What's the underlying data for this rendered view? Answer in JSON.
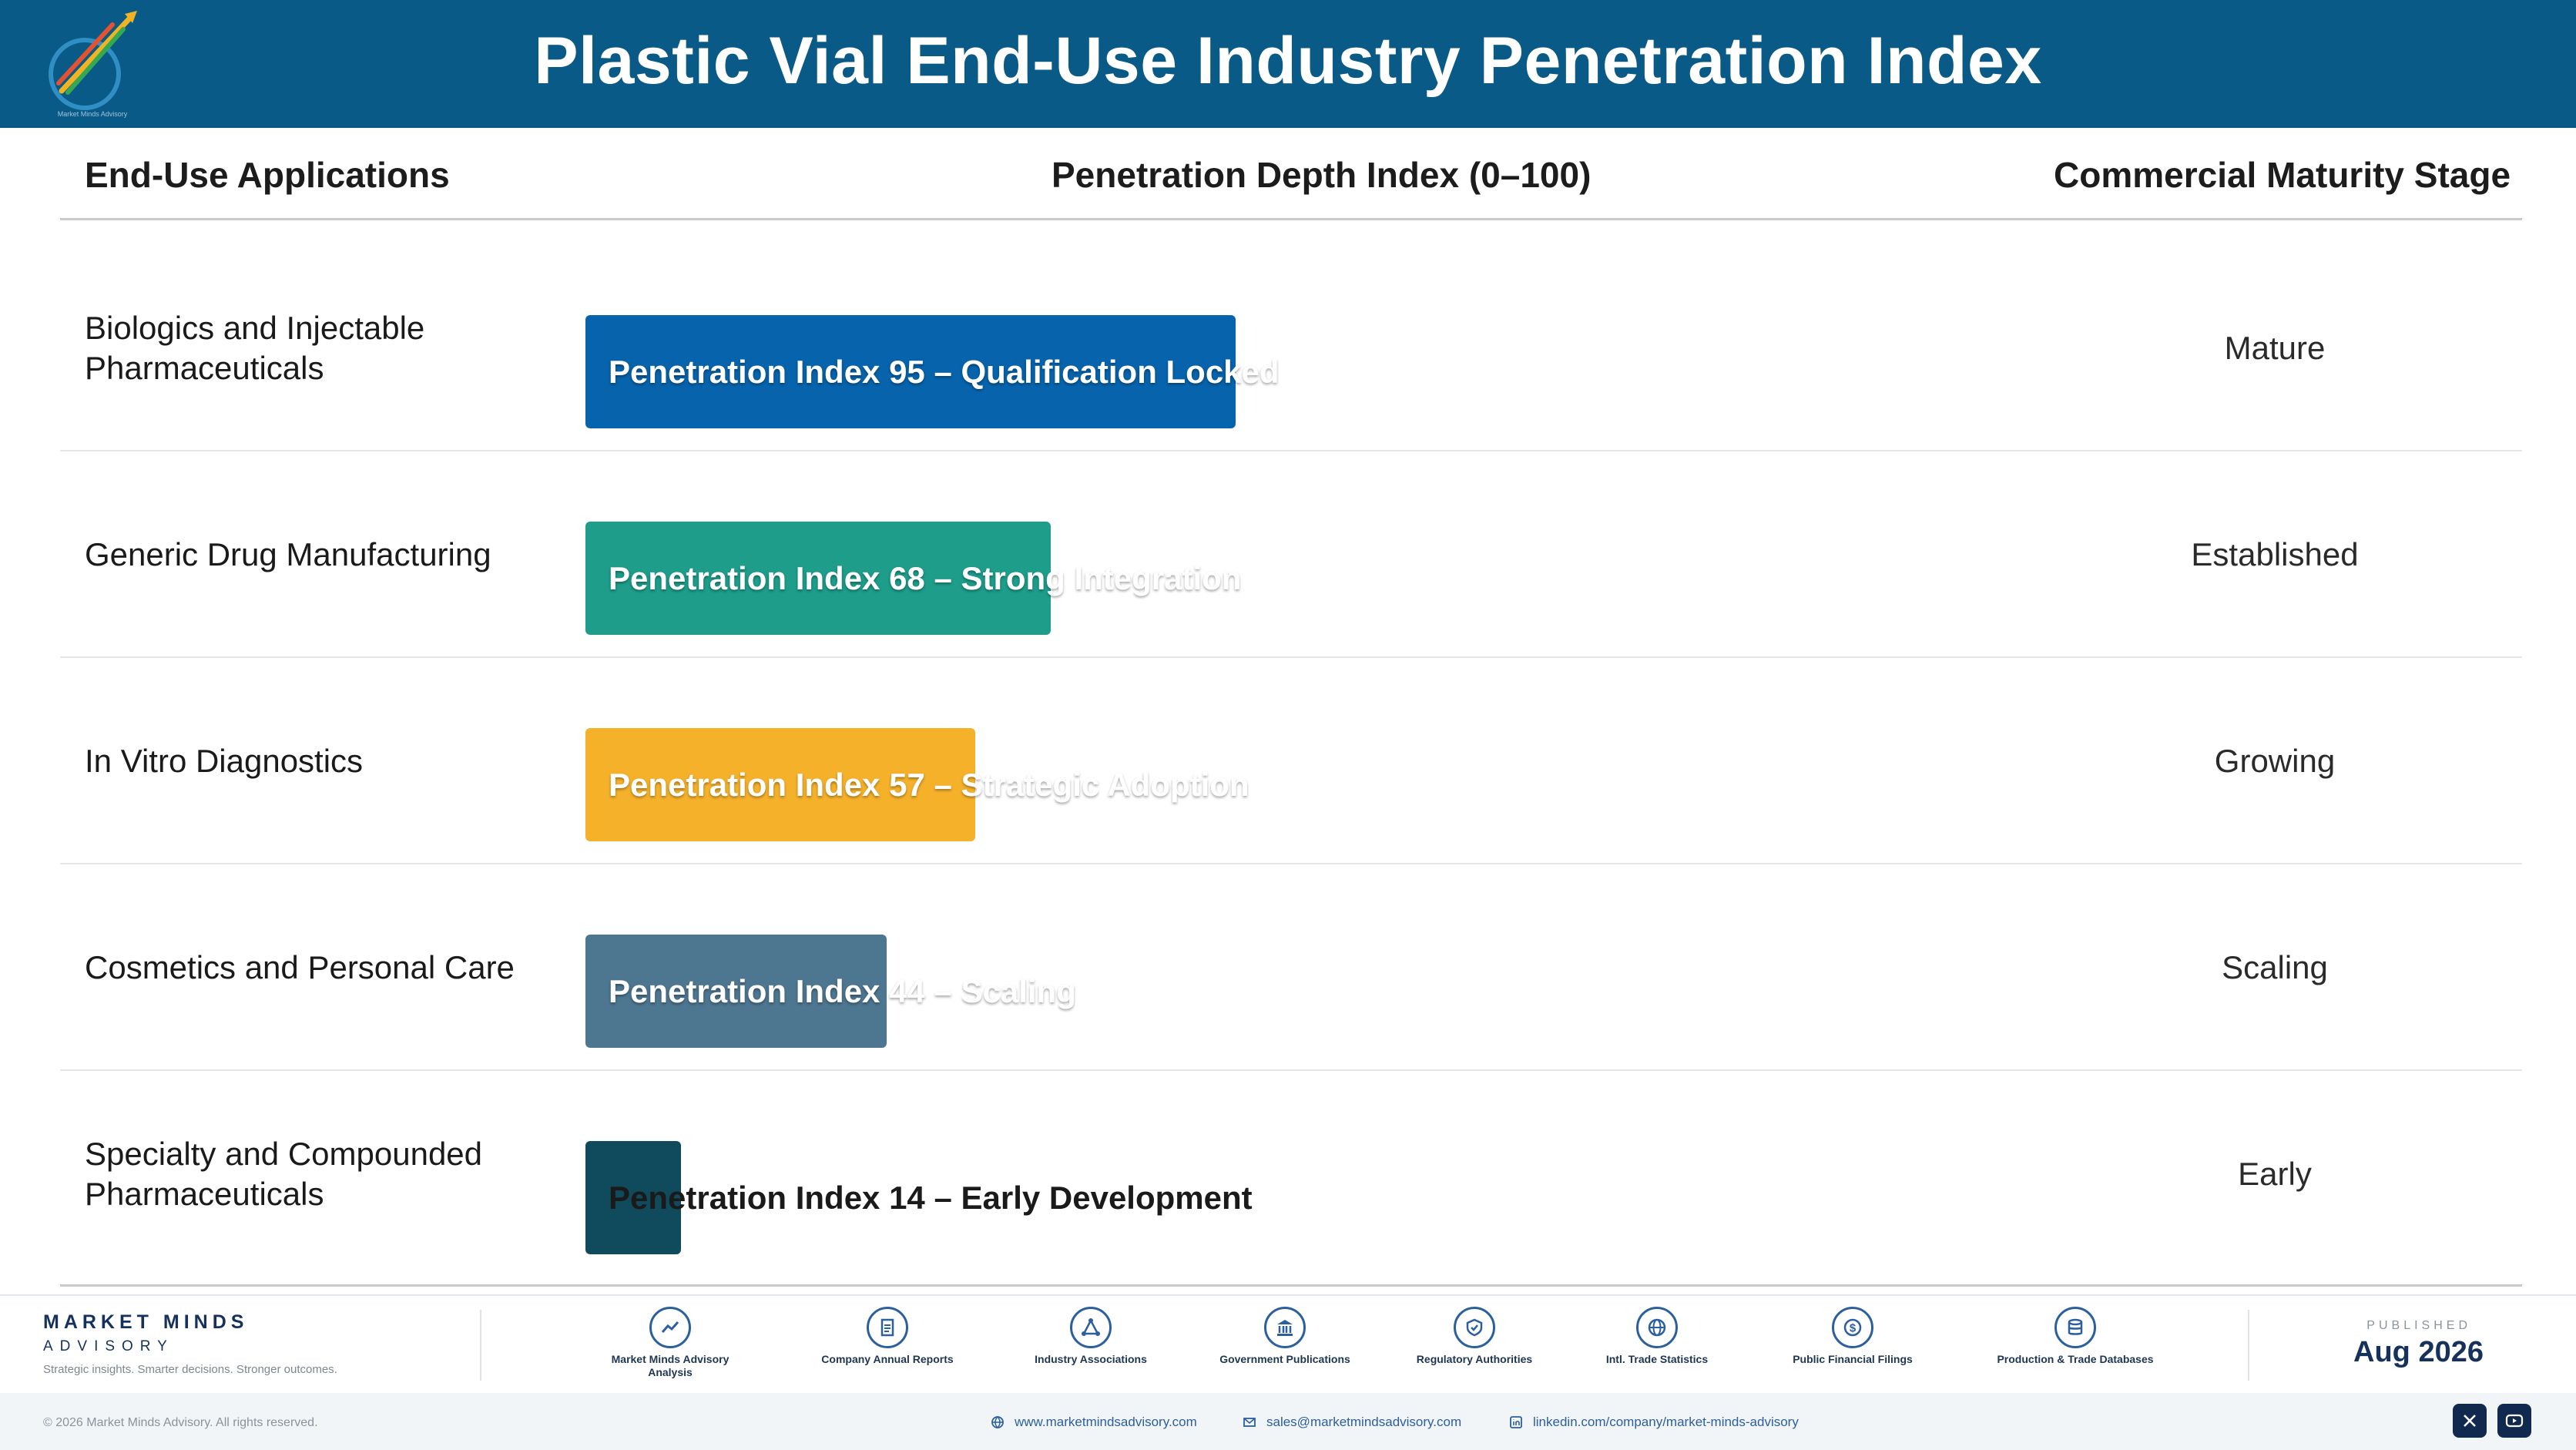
{
  "header": {
    "title": "Plastic Vial End-Use Industry Penetration Index",
    "logo_icon": "market-minds-advisory-logo"
  },
  "columns": {
    "applications": "End-Use Applications",
    "index": "Penetration Depth Index (0–100)",
    "stage": "Commercial Maturity Stage"
  },
  "rows": [
    {
      "application": "Biologics and Injectable Pharmaceuticals",
      "index": 95,
      "bar_label": "Penetration Index 95 – Qualification Locked",
      "stage": "Mature",
      "color": "#0763ab"
    },
    {
      "application": "Generic Drug Manufacturing",
      "index": 68,
      "bar_label": "Penetration Index 68 – Strong Integration",
      "stage": "Established",
      "color": "#1d9d8a"
    },
    {
      "application": "In Vitro Diagnostics",
      "index": 57,
      "bar_label": "Penetration Index 57 – Strategic Adoption",
      "stage": "Growing",
      "color": "#f5b12a"
    },
    {
      "application": "Cosmetics and Personal Care",
      "index": 44,
      "bar_label": "Penetration Index 44 – Scaling",
      "stage": "Scaling",
      "color": "#4d7690"
    },
    {
      "application": "Specialty and Compounded Pharmaceuticals",
      "index": 14,
      "bar_label": "Penetration Index 14 – Early Development",
      "stage": "Early",
      "color": "#0f4b5c"
    }
  ],
  "chart_data": {
    "type": "bar",
    "orientation": "horizontal",
    "title": "Plastic Vial End-Use Industry Penetration Index",
    "xlabel": "Penetration Depth Index (0–100)",
    "ylabel": "End-Use Applications",
    "xlim": [
      0,
      100
    ],
    "grid": false,
    "categories": [
      "Biologics and Injectable Pharmaceuticals",
      "Generic Drug Manufacturing",
      "In Vitro Diagnostics",
      "Cosmetics and Personal Care",
      "Specialty and Compounded Pharmaceuticals"
    ],
    "values": [
      95,
      68,
      57,
      44,
      14
    ],
    "data_labels": [
      "Penetration Index 95 – Qualification Locked",
      "Penetration Index 68 – Strong Integration",
      "Penetration Index 57 – Strategic Adoption",
      "Penetration Index 44 – Scaling",
      "Penetration Index 14 – Early Development"
    ],
    "stages": [
      "Mature",
      "Established",
      "Growing",
      "Scaling",
      "Early"
    ],
    "colors": [
      "#0763ab",
      "#1d9d8a",
      "#f5b12a",
      "#4d7690",
      "#0f4b5c"
    ]
  },
  "footer": {
    "brand_name": "MARKET MINDS",
    "brand_sub": "ADVISORY",
    "brand_tagline": "Strategic insights. Smarter decisions. Stronger outcomes.",
    "sources": [
      {
        "label": "Market Minds Advisory Analysis",
        "icon": "chart-trend-icon"
      },
      {
        "label": "Company Annual Reports",
        "icon": "document-icon"
      },
      {
        "label": "Industry Associations",
        "icon": "network-icon"
      },
      {
        "label": "Government Publications",
        "icon": "government-building-icon"
      },
      {
        "label": "Regulatory Authorities",
        "icon": "shield-check-icon"
      },
      {
        "label": "Intl. Trade Statistics",
        "icon": "globe-icon"
      },
      {
        "label": "Public Financial Filings",
        "icon": "dollar-coin-icon"
      },
      {
        "label": "Production & Trade Databases",
        "icon": "database-icon"
      }
    ],
    "published_label": "PUBLISHED",
    "published_date": "Aug 2026",
    "copyright": "© 2026 Market Minds Advisory. All rights reserved.",
    "website": "www.marketmindsadvisory.com",
    "email": "sales@marketmindsadvisory.com",
    "linkedin": "linkedin.com/company/market-minds-advisory",
    "social_icons": [
      "x-icon",
      "youtube-icon"
    ]
  }
}
